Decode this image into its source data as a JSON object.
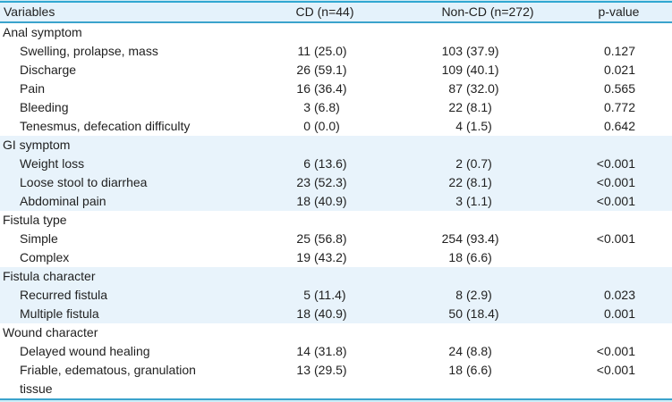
{
  "colors": {
    "band": "#e8f3fb",
    "header_bg": "#e4f2fb",
    "top_line": "#30a7d1",
    "top_line_light": "#cdeaf4",
    "header_underline": "#3ba3cc",
    "bottom_line": "#3ba3cc",
    "bottom_line_light": "#cdeef8",
    "text": "#1f1f1f"
  },
  "table": {
    "columns": [
      "Variables",
      "CD (n=44)",
      "Non-CD (n=272)",
      "p-value"
    ],
    "sections": [
      {
        "name": "Anal symptom",
        "shaded": false,
        "rows": [
          {
            "label": "Swelling, prolapse, mass",
            "cd": "11 (25.0)",
            "noncd": "103 (37.9)",
            "p": "0.127"
          },
          {
            "label": "Discharge",
            "cd": "26 (59.1)",
            "noncd": "109 (40.1)",
            "p": "0.021"
          },
          {
            "label": "Pain",
            "cd": "16 (36.4)",
            "noncd": "87 (32.0)",
            "p": "0.565"
          },
          {
            "label": "Bleeding",
            "cd": "3 (6.8)",
            "noncd": "22 (8.1)",
            "p": "0.772"
          },
          {
            "label": "Tenesmus, defecation difficulty",
            "cd": "0 (0.0)",
            "noncd": "4 (1.5)",
            "p": "0.642"
          }
        ]
      },
      {
        "name": "GI symptom",
        "shaded": true,
        "rows": [
          {
            "label": "Weight loss",
            "cd": "6 (13.6)",
            "noncd": "2 (0.7)",
            "p": "<0.001"
          },
          {
            "label": "Loose stool to diarrhea",
            "cd": "23 (52.3)",
            "noncd": "22 (8.1)",
            "p": "<0.001"
          },
          {
            "label": "Abdominal pain",
            "cd": "18 (40.9)",
            "noncd": "3 (1.1)",
            "p": "<0.001"
          }
        ]
      },
      {
        "name": "Fistula type",
        "shaded": false,
        "rows": [
          {
            "label": "Simple",
            "cd": "25 (56.8)",
            "noncd": "254 (93.4)",
            "p": "<0.001"
          },
          {
            "label": "Complex",
            "cd": "19 (43.2)",
            "noncd": "18 (6.6)",
            "p": ""
          }
        ]
      },
      {
        "name": "Fistula character",
        "shaded": true,
        "rows": [
          {
            "label": "Recurred fistula",
            "cd": "5 (11.4)",
            "noncd": "8 (2.9)",
            "p": "0.023"
          },
          {
            "label": "Multiple fistula",
            "cd": "18 (40.9)",
            "noncd": "50 (18.4)",
            "p": "0.001"
          }
        ]
      },
      {
        "name": "Wound character",
        "shaded": false,
        "rows": [
          {
            "label": "Delayed wound healing",
            "cd": "14 (31.8)",
            "noncd": "24 (8.8)",
            "p": "<0.001"
          },
          {
            "label": "Friable, edematous, granulation\ntissue",
            "cd": "13 (29.5)",
            "noncd": "18 (6.6)",
            "p": "<0.001"
          }
        ]
      }
    ]
  }
}
